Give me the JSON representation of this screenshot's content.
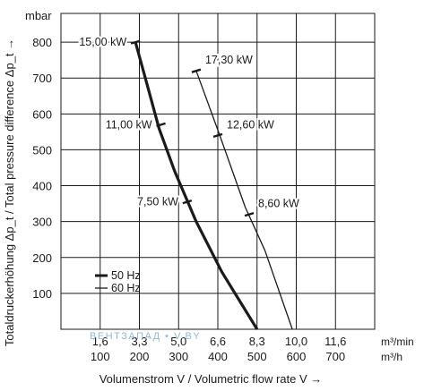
{
  "chart_data": {
    "type": "line",
    "y_unit": "mbar",
    "ylabel": "Totaldruckerhöhung Δp_t / Total pressure difference Δp_t →",
    "xlabel": "Volumenstrom V / Volumetric flow rate V →",
    "ylim": [
      0,
      880
    ],
    "y_ticks": [
      100,
      200,
      300,
      400,
      500,
      600,
      700,
      800
    ],
    "x_ticks_m3h": [
      100,
      200,
      300,
      400,
      500,
      600,
      700
    ],
    "x_ticks_m3min": [
      "1,6",
      "3,3",
      "5,0",
      "6,6",
      "8,3",
      "10,0",
      "11,6"
    ],
    "x_unit_top": "m³/min",
    "x_unit_bottom": "m³/h",
    "xlim": [
      0,
      800
    ],
    "grid": true,
    "legend_position": "bottom-left",
    "series": [
      {
        "name": "50 Hz",
        "style": "thick",
        "points": [
          [
            190,
            800
          ],
          [
            220,
            680
          ],
          [
            250,
            560
          ],
          [
            290,
            440
          ],
          [
            345,
            300
          ],
          [
            410,
            160
          ],
          [
            500,
            0
          ]
        ],
        "markers": [
          {
            "x": 190,
            "y": 800,
            "label": "15,00 kW"
          },
          {
            "x": 255,
            "y": 570,
            "label": "11,00 kW"
          },
          {
            "x": 322,
            "y": 355,
            "label": "7,50 kW"
          }
        ]
      },
      {
        "name": "60 Hz",
        "style": "thin",
        "points": [
          [
            345,
            720
          ],
          [
            405,
            540
          ],
          [
            470,
            340
          ],
          [
            520,
            220
          ],
          [
            590,
            0
          ]
        ],
        "markers": [
          {
            "x": 345,
            "y": 720,
            "label": "17,30 kW"
          },
          {
            "x": 400,
            "y": 540,
            "label": "12,60 kW"
          },
          {
            "x": 480,
            "y": 320,
            "label": "8,60 kW"
          }
        ]
      }
    ]
  },
  "watermark": "ВЕНТЗАПАД • V.BY"
}
